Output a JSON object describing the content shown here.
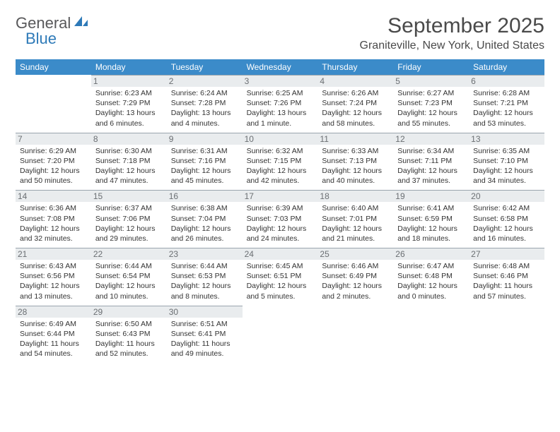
{
  "logo": {
    "text1": "General",
    "text2": "Blue",
    "accent": "#2e7ab8",
    "text_color": "#58585a"
  },
  "title": "September 2025",
  "location": "Graniteville, New York, United States",
  "day_headers": [
    "Sunday",
    "Monday",
    "Tuesday",
    "Wednesday",
    "Thursday",
    "Friday",
    "Saturday"
  ],
  "header_bg": "#3b8bc9",
  "header_fg": "#ffffff",
  "daynum_bg": "#e9ecee",
  "daynum_fg": "#6b6f73",
  "divider_color": "#2b5b7e",
  "weeks": [
    [
      {
        "n": "",
        "lines": [
          "",
          "",
          "",
          ""
        ]
      },
      {
        "n": "1",
        "lines": [
          "Sunrise: 6:23 AM",
          "Sunset: 7:29 PM",
          "Daylight: 13 hours",
          "and 6 minutes."
        ]
      },
      {
        "n": "2",
        "lines": [
          "Sunrise: 6:24 AM",
          "Sunset: 7:28 PM",
          "Daylight: 13 hours",
          "and 4 minutes."
        ]
      },
      {
        "n": "3",
        "lines": [
          "Sunrise: 6:25 AM",
          "Sunset: 7:26 PM",
          "Daylight: 13 hours",
          "and 1 minute."
        ]
      },
      {
        "n": "4",
        "lines": [
          "Sunrise: 6:26 AM",
          "Sunset: 7:24 PM",
          "Daylight: 12 hours",
          "and 58 minutes."
        ]
      },
      {
        "n": "5",
        "lines": [
          "Sunrise: 6:27 AM",
          "Sunset: 7:23 PM",
          "Daylight: 12 hours",
          "and 55 minutes."
        ]
      },
      {
        "n": "6",
        "lines": [
          "Sunrise: 6:28 AM",
          "Sunset: 7:21 PM",
          "Daylight: 12 hours",
          "and 53 minutes."
        ]
      }
    ],
    [
      {
        "n": "7",
        "lines": [
          "Sunrise: 6:29 AM",
          "Sunset: 7:20 PM",
          "Daylight: 12 hours",
          "and 50 minutes."
        ]
      },
      {
        "n": "8",
        "lines": [
          "Sunrise: 6:30 AM",
          "Sunset: 7:18 PM",
          "Daylight: 12 hours",
          "and 47 minutes."
        ]
      },
      {
        "n": "9",
        "lines": [
          "Sunrise: 6:31 AM",
          "Sunset: 7:16 PM",
          "Daylight: 12 hours",
          "and 45 minutes."
        ]
      },
      {
        "n": "10",
        "lines": [
          "Sunrise: 6:32 AM",
          "Sunset: 7:15 PM",
          "Daylight: 12 hours",
          "and 42 minutes."
        ]
      },
      {
        "n": "11",
        "lines": [
          "Sunrise: 6:33 AM",
          "Sunset: 7:13 PM",
          "Daylight: 12 hours",
          "and 40 minutes."
        ]
      },
      {
        "n": "12",
        "lines": [
          "Sunrise: 6:34 AM",
          "Sunset: 7:11 PM",
          "Daylight: 12 hours",
          "and 37 minutes."
        ]
      },
      {
        "n": "13",
        "lines": [
          "Sunrise: 6:35 AM",
          "Sunset: 7:10 PM",
          "Daylight: 12 hours",
          "and 34 minutes."
        ]
      }
    ],
    [
      {
        "n": "14",
        "lines": [
          "Sunrise: 6:36 AM",
          "Sunset: 7:08 PM",
          "Daylight: 12 hours",
          "and 32 minutes."
        ]
      },
      {
        "n": "15",
        "lines": [
          "Sunrise: 6:37 AM",
          "Sunset: 7:06 PM",
          "Daylight: 12 hours",
          "and 29 minutes."
        ]
      },
      {
        "n": "16",
        "lines": [
          "Sunrise: 6:38 AM",
          "Sunset: 7:04 PM",
          "Daylight: 12 hours",
          "and 26 minutes."
        ]
      },
      {
        "n": "17",
        "lines": [
          "Sunrise: 6:39 AM",
          "Sunset: 7:03 PM",
          "Daylight: 12 hours",
          "and 24 minutes."
        ]
      },
      {
        "n": "18",
        "lines": [
          "Sunrise: 6:40 AM",
          "Sunset: 7:01 PM",
          "Daylight: 12 hours",
          "and 21 minutes."
        ]
      },
      {
        "n": "19",
        "lines": [
          "Sunrise: 6:41 AM",
          "Sunset: 6:59 PM",
          "Daylight: 12 hours",
          "and 18 minutes."
        ]
      },
      {
        "n": "20",
        "lines": [
          "Sunrise: 6:42 AM",
          "Sunset: 6:58 PM",
          "Daylight: 12 hours",
          "and 16 minutes."
        ]
      }
    ],
    [
      {
        "n": "21",
        "lines": [
          "Sunrise: 6:43 AM",
          "Sunset: 6:56 PM",
          "Daylight: 12 hours",
          "and 13 minutes."
        ]
      },
      {
        "n": "22",
        "lines": [
          "Sunrise: 6:44 AM",
          "Sunset: 6:54 PM",
          "Daylight: 12 hours",
          "and 10 minutes."
        ]
      },
      {
        "n": "23",
        "lines": [
          "Sunrise: 6:44 AM",
          "Sunset: 6:53 PM",
          "Daylight: 12 hours",
          "and 8 minutes."
        ]
      },
      {
        "n": "24",
        "lines": [
          "Sunrise: 6:45 AM",
          "Sunset: 6:51 PM",
          "Daylight: 12 hours",
          "and 5 minutes."
        ]
      },
      {
        "n": "25",
        "lines": [
          "Sunrise: 6:46 AM",
          "Sunset: 6:49 PM",
          "Daylight: 12 hours",
          "and 2 minutes."
        ]
      },
      {
        "n": "26",
        "lines": [
          "Sunrise: 6:47 AM",
          "Sunset: 6:48 PM",
          "Daylight: 12 hours",
          "and 0 minutes."
        ]
      },
      {
        "n": "27",
        "lines": [
          "Sunrise: 6:48 AM",
          "Sunset: 6:46 PM",
          "Daylight: 11 hours",
          "and 57 minutes."
        ]
      }
    ],
    [
      {
        "n": "28",
        "lines": [
          "Sunrise: 6:49 AM",
          "Sunset: 6:44 PM",
          "Daylight: 11 hours",
          "and 54 minutes."
        ]
      },
      {
        "n": "29",
        "lines": [
          "Sunrise: 6:50 AM",
          "Sunset: 6:43 PM",
          "Daylight: 11 hours",
          "and 52 minutes."
        ]
      },
      {
        "n": "30",
        "lines": [
          "Sunrise: 6:51 AM",
          "Sunset: 6:41 PM",
          "Daylight: 11 hours",
          "and 49 minutes."
        ]
      },
      {
        "n": "",
        "lines": [
          "",
          "",
          "",
          ""
        ]
      },
      {
        "n": "",
        "lines": [
          "",
          "",
          "",
          ""
        ]
      },
      {
        "n": "",
        "lines": [
          "",
          "",
          "",
          ""
        ]
      },
      {
        "n": "",
        "lines": [
          "",
          "",
          "",
          ""
        ]
      }
    ]
  ]
}
